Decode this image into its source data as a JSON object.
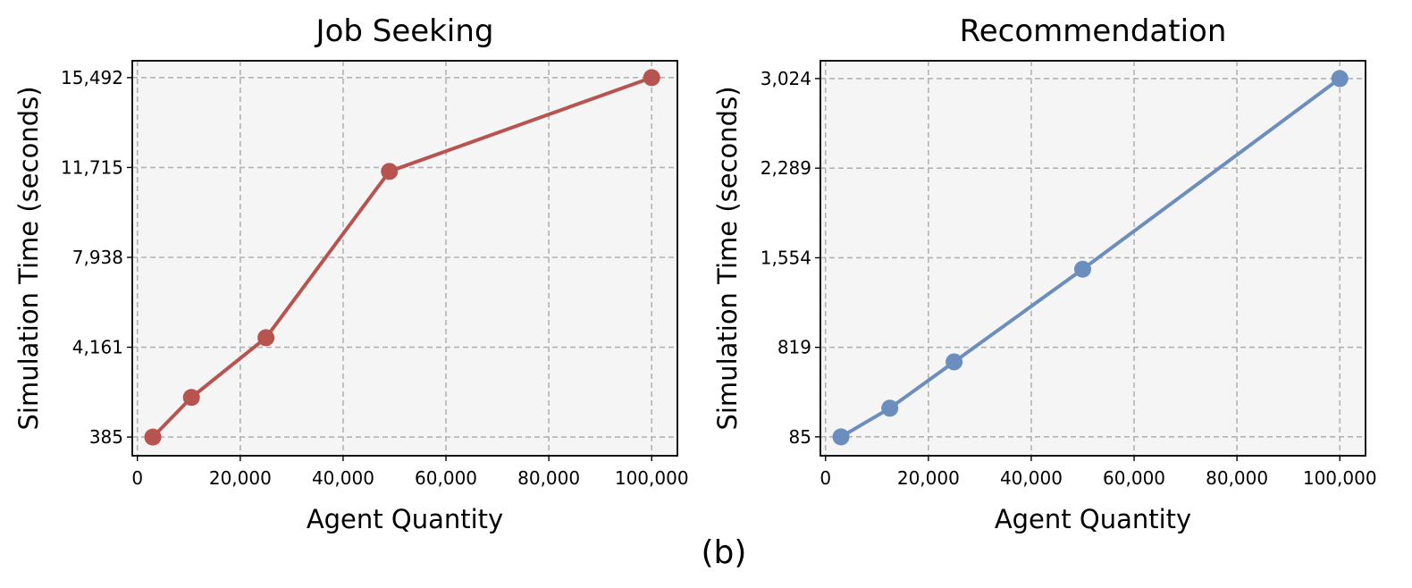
{
  "chart_data": [
    {
      "type": "line",
      "title": "Job Seeking",
      "xlabel": "Agent Quantity",
      "ylabel": "Simulation Time (seconds)",
      "x_ticks": [
        "0",
        "20,000",
        "40,000",
        "60,000",
        "80,000",
        "100,000"
      ],
      "x_tick_values": [
        0,
        20000,
        40000,
        60000,
        80000,
        100000
      ],
      "y_ticks": [
        "385",
        "4,161",
        "7,938",
        "11,715",
        "15,492"
      ],
      "y_tick_values": [
        385,
        4161,
        7938,
        11715,
        15492
      ],
      "xlim": [
        -1000,
        105000
      ],
      "ylim": [
        -400,
        16200
      ],
      "grid": true,
      "series": [
        {
          "color": "#b85450",
          "x": [
            3000,
            10500,
            25000,
            49000,
            100000
          ],
          "y": [
            385,
            2050,
            4560,
            11550,
            15492
          ]
        }
      ]
    },
    {
      "type": "line",
      "title": "Recommendation",
      "xlabel": "Agent Quantity",
      "ylabel": "Simulation Time (seconds)",
      "x_ticks": [
        "0",
        "20,000",
        "40,000",
        "60,000",
        "80,000",
        "100,000"
      ],
      "x_tick_values": [
        0,
        20000,
        40000,
        60000,
        80000,
        100000
      ],
      "y_ticks": [
        "85",
        "819",
        "1,554",
        "2,289",
        "3,024"
      ],
      "y_tick_values": [
        85,
        819,
        1554,
        2289,
        3024
      ],
      "xlim": [
        -1000,
        105000
      ],
      "ylim": [
        -70,
        3170
      ],
      "grid": true,
      "series": [
        {
          "color": "#6c8ebf",
          "x": [
            3000,
            12500,
            25000,
            50000,
            100000
          ],
          "y": [
            85,
            320,
            700,
            1460,
            3024
          ]
        }
      ]
    }
  ],
  "caption": "(b)"
}
